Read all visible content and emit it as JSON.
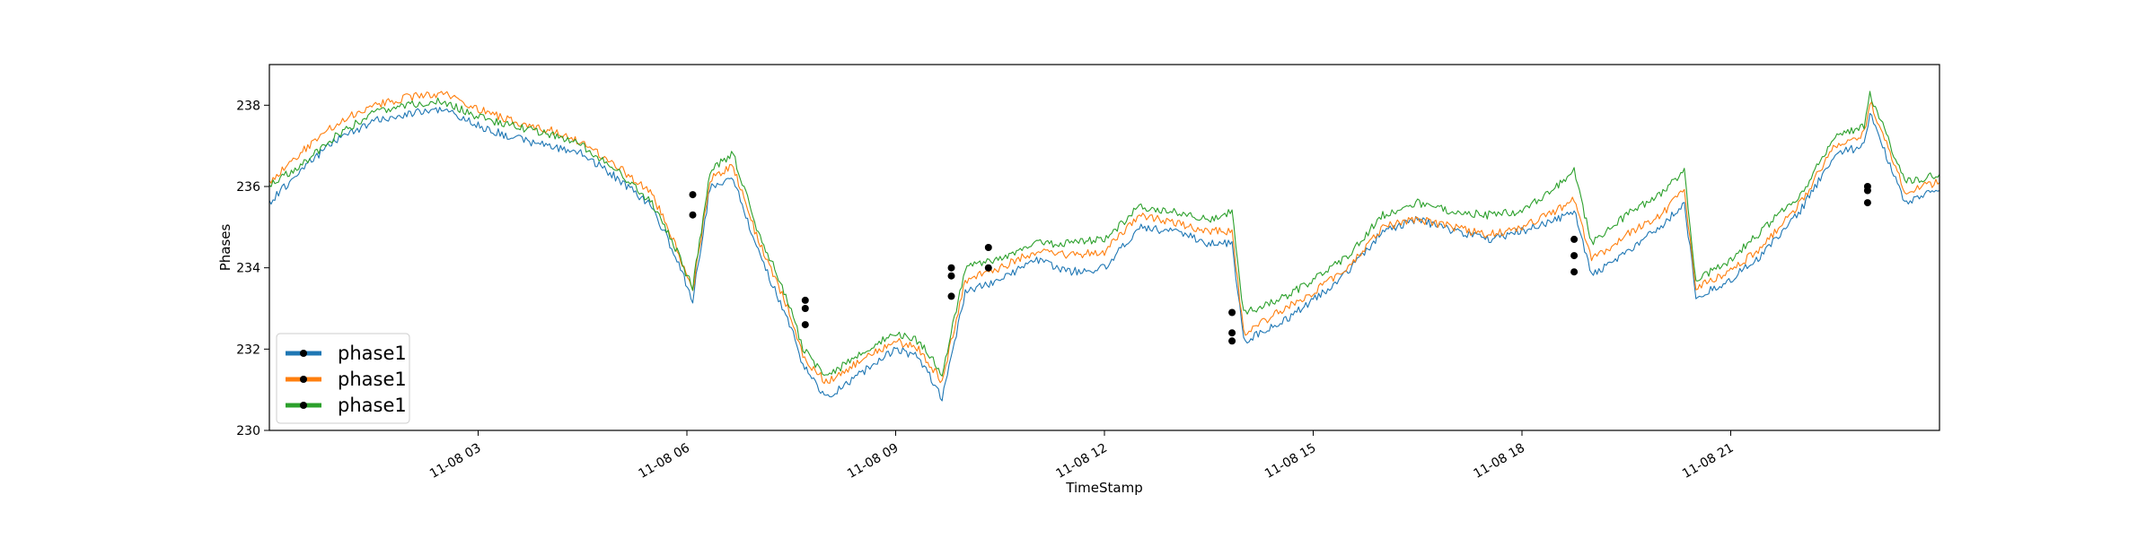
{
  "chart_data": {
    "type": "line",
    "title": "",
    "xlabel": "TimeStamp",
    "ylabel": "Phases",
    "xlim": [
      "2000-11-08 00:00",
      "2000-11-09 00:00"
    ],
    "ylim": [
      230,
      239
    ],
    "x_ticks": [
      {
        "x": "2000-11-08 03:00",
        "label": "11-08 03"
      },
      {
        "x": "2000-11-08 06:00",
        "label": "11-08 06"
      },
      {
        "x": "2000-11-08 09:00",
        "label": "11-08 09"
      },
      {
        "x": "2000-11-08 12:00",
        "label": "11-08 12"
      },
      {
        "x": "2000-11-08 15:00",
        "label": "11-08 15"
      },
      {
        "x": "2000-11-08 18:00",
        "label": "11-08 18"
      },
      {
        "x": "2000-11-08 21:00",
        "label": "11-08 21"
      }
    ],
    "y_ticks": [
      {
        "y": 230,
        "label": "230"
      },
      {
        "y": 232,
        "label": "232"
      },
      {
        "y": 234,
        "label": "234"
      },
      {
        "y": 236,
        "label": "236"
      },
      {
        "y": 238,
        "label": "238"
      }
    ],
    "grid": false,
    "legend_position": "lower-left",
    "x": [
      "2000-11-08 00:00",
      "2000-11-08 00:30",
      "2000-11-08 01:00",
      "2000-11-08 01:30",
      "2000-11-08 02:00",
      "2000-11-08 02:30",
      "2000-11-08 03:00",
      "2000-11-08 03:30",
      "2000-11-08 04:00",
      "2000-11-08 04:30",
      "2000-11-08 05:00",
      "2000-11-08 05:30",
      "2000-11-08 05:50",
      "2000-11-08 06:05",
      "2000-11-08 06:20",
      "2000-11-08 06:40",
      "2000-11-08 07:00",
      "2000-11-08 07:30",
      "2000-11-08 07:40",
      "2000-11-08 08:00",
      "2000-11-08 08:30",
      "2000-11-08 09:00",
      "2000-11-08 09:20",
      "2000-11-08 09:40",
      "2000-11-08 10:00",
      "2000-11-08 10:30",
      "2000-11-08 11:00",
      "2000-11-08 11:30",
      "2000-11-08 12:00",
      "2000-11-08 12:30",
      "2000-11-08 13:00",
      "2000-11-08 13:30",
      "2000-11-08 13:50",
      "2000-11-08 14:00",
      "2000-11-08 14:30",
      "2000-11-08 15:00",
      "2000-11-08 15:30",
      "2000-11-08 16:00",
      "2000-11-08 16:30",
      "2000-11-08 17:00",
      "2000-11-08 17:30",
      "2000-11-08 18:00",
      "2000-11-08 18:30",
      "2000-11-08 18:45",
      "2000-11-08 19:00",
      "2000-11-08 19:30",
      "2000-11-08 20:00",
      "2000-11-08 20:20",
      "2000-11-08 20:30",
      "2000-11-08 21:00",
      "2000-11-08 21:30",
      "2000-11-08 22:00",
      "2000-11-08 22:30",
      "2000-11-08 22:55",
      "2000-11-08 23:00",
      "2000-11-08 23:30",
      "2000-11-09 00:00"
    ],
    "series": [
      {
        "name": "phase1",
        "color": "#1f77b4",
        "values": [
          235.6,
          236.5,
          237.2,
          237.6,
          237.8,
          237.9,
          237.5,
          237.2,
          237.0,
          236.8,
          236.2,
          235.5,
          234.3,
          233.2,
          236.0,
          236.2,
          234.5,
          232.5,
          231.6,
          230.8,
          231.4,
          232.0,
          231.8,
          230.8,
          233.4,
          233.7,
          234.2,
          233.9,
          234.0,
          235.0,
          234.9,
          234.6,
          234.6,
          232.2,
          232.6,
          233.2,
          233.9,
          234.9,
          235.2,
          234.9,
          234.7,
          234.9,
          235.2,
          235.4,
          233.8,
          234.4,
          235.0,
          235.6,
          233.3,
          233.7,
          234.4,
          235.4,
          236.8,
          237.0,
          237.8,
          235.6,
          235.9
        ]
      },
      {
        "name": "phase1",
        "color": "#ff7f0e",
        "values": [
          236.1,
          236.9,
          237.6,
          238.0,
          238.2,
          238.3,
          237.9,
          237.6,
          237.4,
          237.1,
          236.5,
          235.8,
          234.6,
          233.4,
          236.2,
          236.5,
          234.8,
          232.8,
          231.8,
          231.2,
          231.7,
          232.2,
          232.0,
          231.2,
          233.7,
          234.0,
          234.4,
          234.3,
          234.4,
          235.3,
          235.1,
          234.9,
          234.9,
          232.4,
          232.9,
          233.4,
          234.0,
          235.0,
          235.2,
          235.0,
          234.8,
          235.0,
          235.4,
          235.7,
          234.2,
          234.8,
          235.3,
          235.9,
          233.5,
          233.9,
          234.6,
          235.6,
          237.0,
          237.3,
          238.1,
          235.9,
          236.1
        ]
      },
      {
        "name": "phase1",
        "color": "#2ca02c",
        "values": [
          236.0,
          236.6,
          237.3,
          237.8,
          238.0,
          238.1,
          237.7,
          237.5,
          237.3,
          237.0,
          236.4,
          235.6,
          234.5,
          233.5,
          236.4,
          236.8,
          235.0,
          233.0,
          232.0,
          231.3,
          231.9,
          232.4,
          232.2,
          231.4,
          234.0,
          234.2,
          234.6,
          234.6,
          234.7,
          235.5,
          235.4,
          235.2,
          235.4,
          232.9,
          233.2,
          233.7,
          234.3,
          235.3,
          235.6,
          235.4,
          235.3,
          235.4,
          236.0,
          236.4,
          234.6,
          235.3,
          235.8,
          236.4,
          233.7,
          234.2,
          235.0,
          235.8,
          237.2,
          237.5,
          238.3,
          236.1,
          236.3
        ]
      }
    ],
    "marked_points": [
      {
        "x": "2000-11-08 06:05",
        "y": 235.3
      },
      {
        "x": "2000-11-08 06:05",
        "y": 235.8
      },
      {
        "x": "2000-11-08 07:42",
        "y": 232.6
      },
      {
        "x": "2000-11-08 07:42",
        "y": 233.0
      },
      {
        "x": "2000-11-08 07:42",
        "y": 233.2
      },
      {
        "x": "2000-11-08 09:48",
        "y": 233.3
      },
      {
        "x": "2000-11-08 09:48",
        "y": 233.8
      },
      {
        "x": "2000-11-08 09:48",
        "y": 234.0
      },
      {
        "x": "2000-11-08 10:20",
        "y": 234.0
      },
      {
        "x": "2000-11-08 10:20",
        "y": 234.5
      },
      {
        "x": "2000-11-08 13:50",
        "y": 232.2
      },
      {
        "x": "2000-11-08 13:50",
        "y": 232.4
      },
      {
        "x": "2000-11-08 13:50",
        "y": 232.9
      },
      {
        "x": "2000-11-08 18:45",
        "y": 233.9
      },
      {
        "x": "2000-11-08 18:45",
        "y": 234.3
      },
      {
        "x": "2000-11-08 18:45",
        "y": 234.7
      },
      {
        "x": "2000-11-08 22:58",
        "y": 235.6
      },
      {
        "x": "2000-11-08 22:58",
        "y": 235.9
      },
      {
        "x": "2000-11-08 22:58",
        "y": 236.0
      }
    ],
    "marker_color": "#000000"
  }
}
